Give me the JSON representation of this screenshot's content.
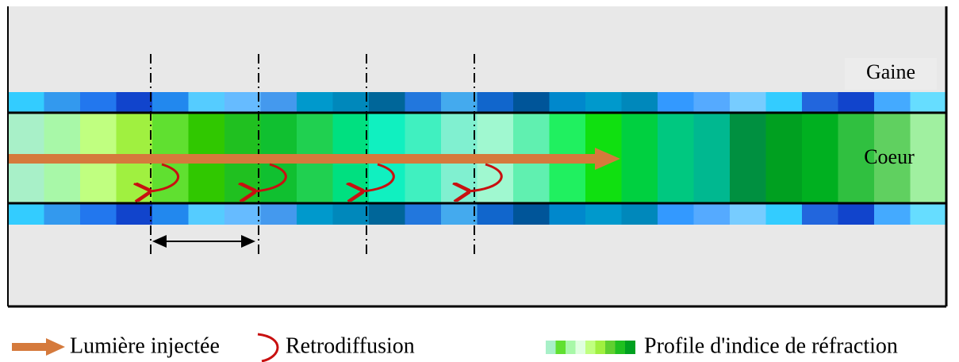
{
  "labels": {
    "cladding": "Gaine",
    "core": "Coeur"
  },
  "legend": {
    "injected": "Lumière injectée",
    "backscatter": "Retrodiffusion",
    "profile": "Profile d'indice de réfraction"
  }
}
